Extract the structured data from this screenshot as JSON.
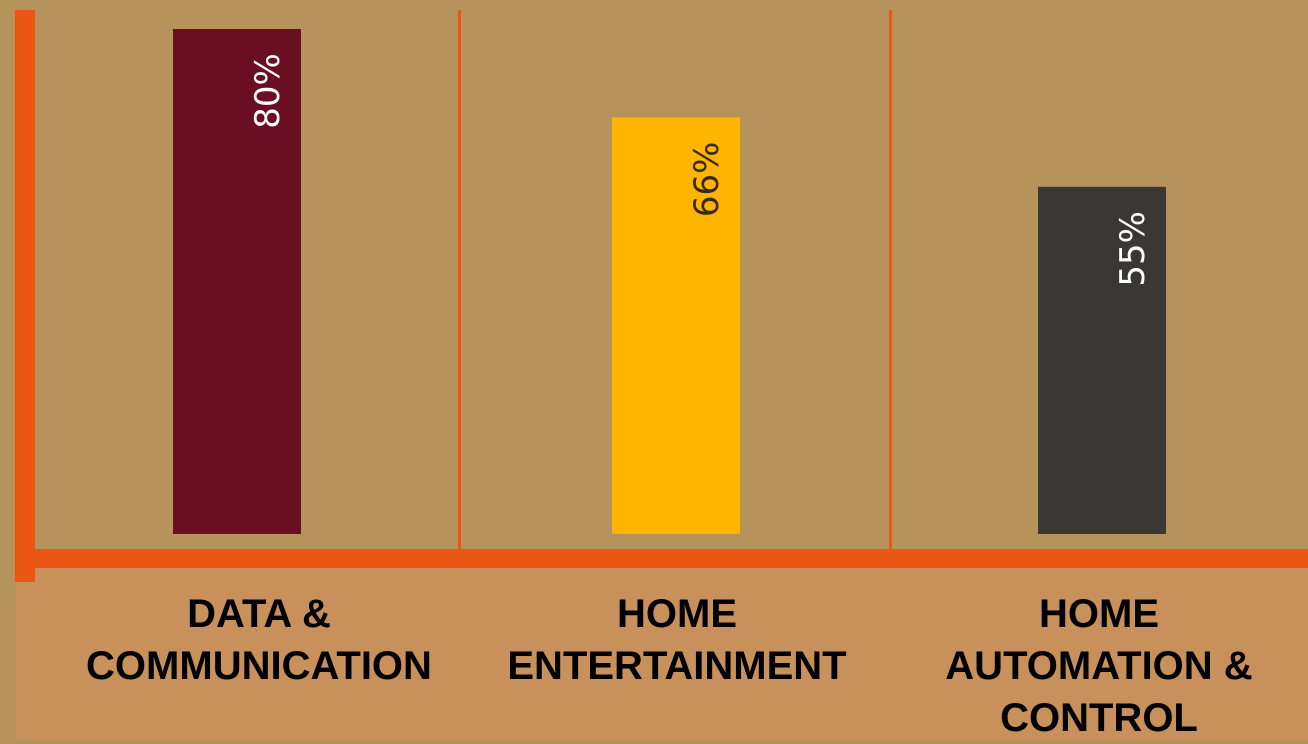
{
  "chart_data": {
    "type": "bar",
    "categories": [
      "DATA &\nCOMMUNICATION",
      "HOME\nENTERTAINMENT",
      "HOME\nAUTOMATION &\nCONTROL"
    ],
    "values": [
      80,
      66,
      55
    ],
    "value_labels": [
      "80%",
      "66%",
      "55%"
    ],
    "ylim": [
      0,
      100
    ],
    "grid": false,
    "legend": "none",
    "colors": {
      "background": "#b6935b",
      "label_band": "#c8915b",
      "axis": "#ea5614",
      "bars": [
        "#6a0f22",
        "#ffb400",
        "#3b3734"
      ],
      "value_label_colors": [
        "#ffffff",
        "#3a2a14",
        "#ffffff"
      ]
    }
  }
}
